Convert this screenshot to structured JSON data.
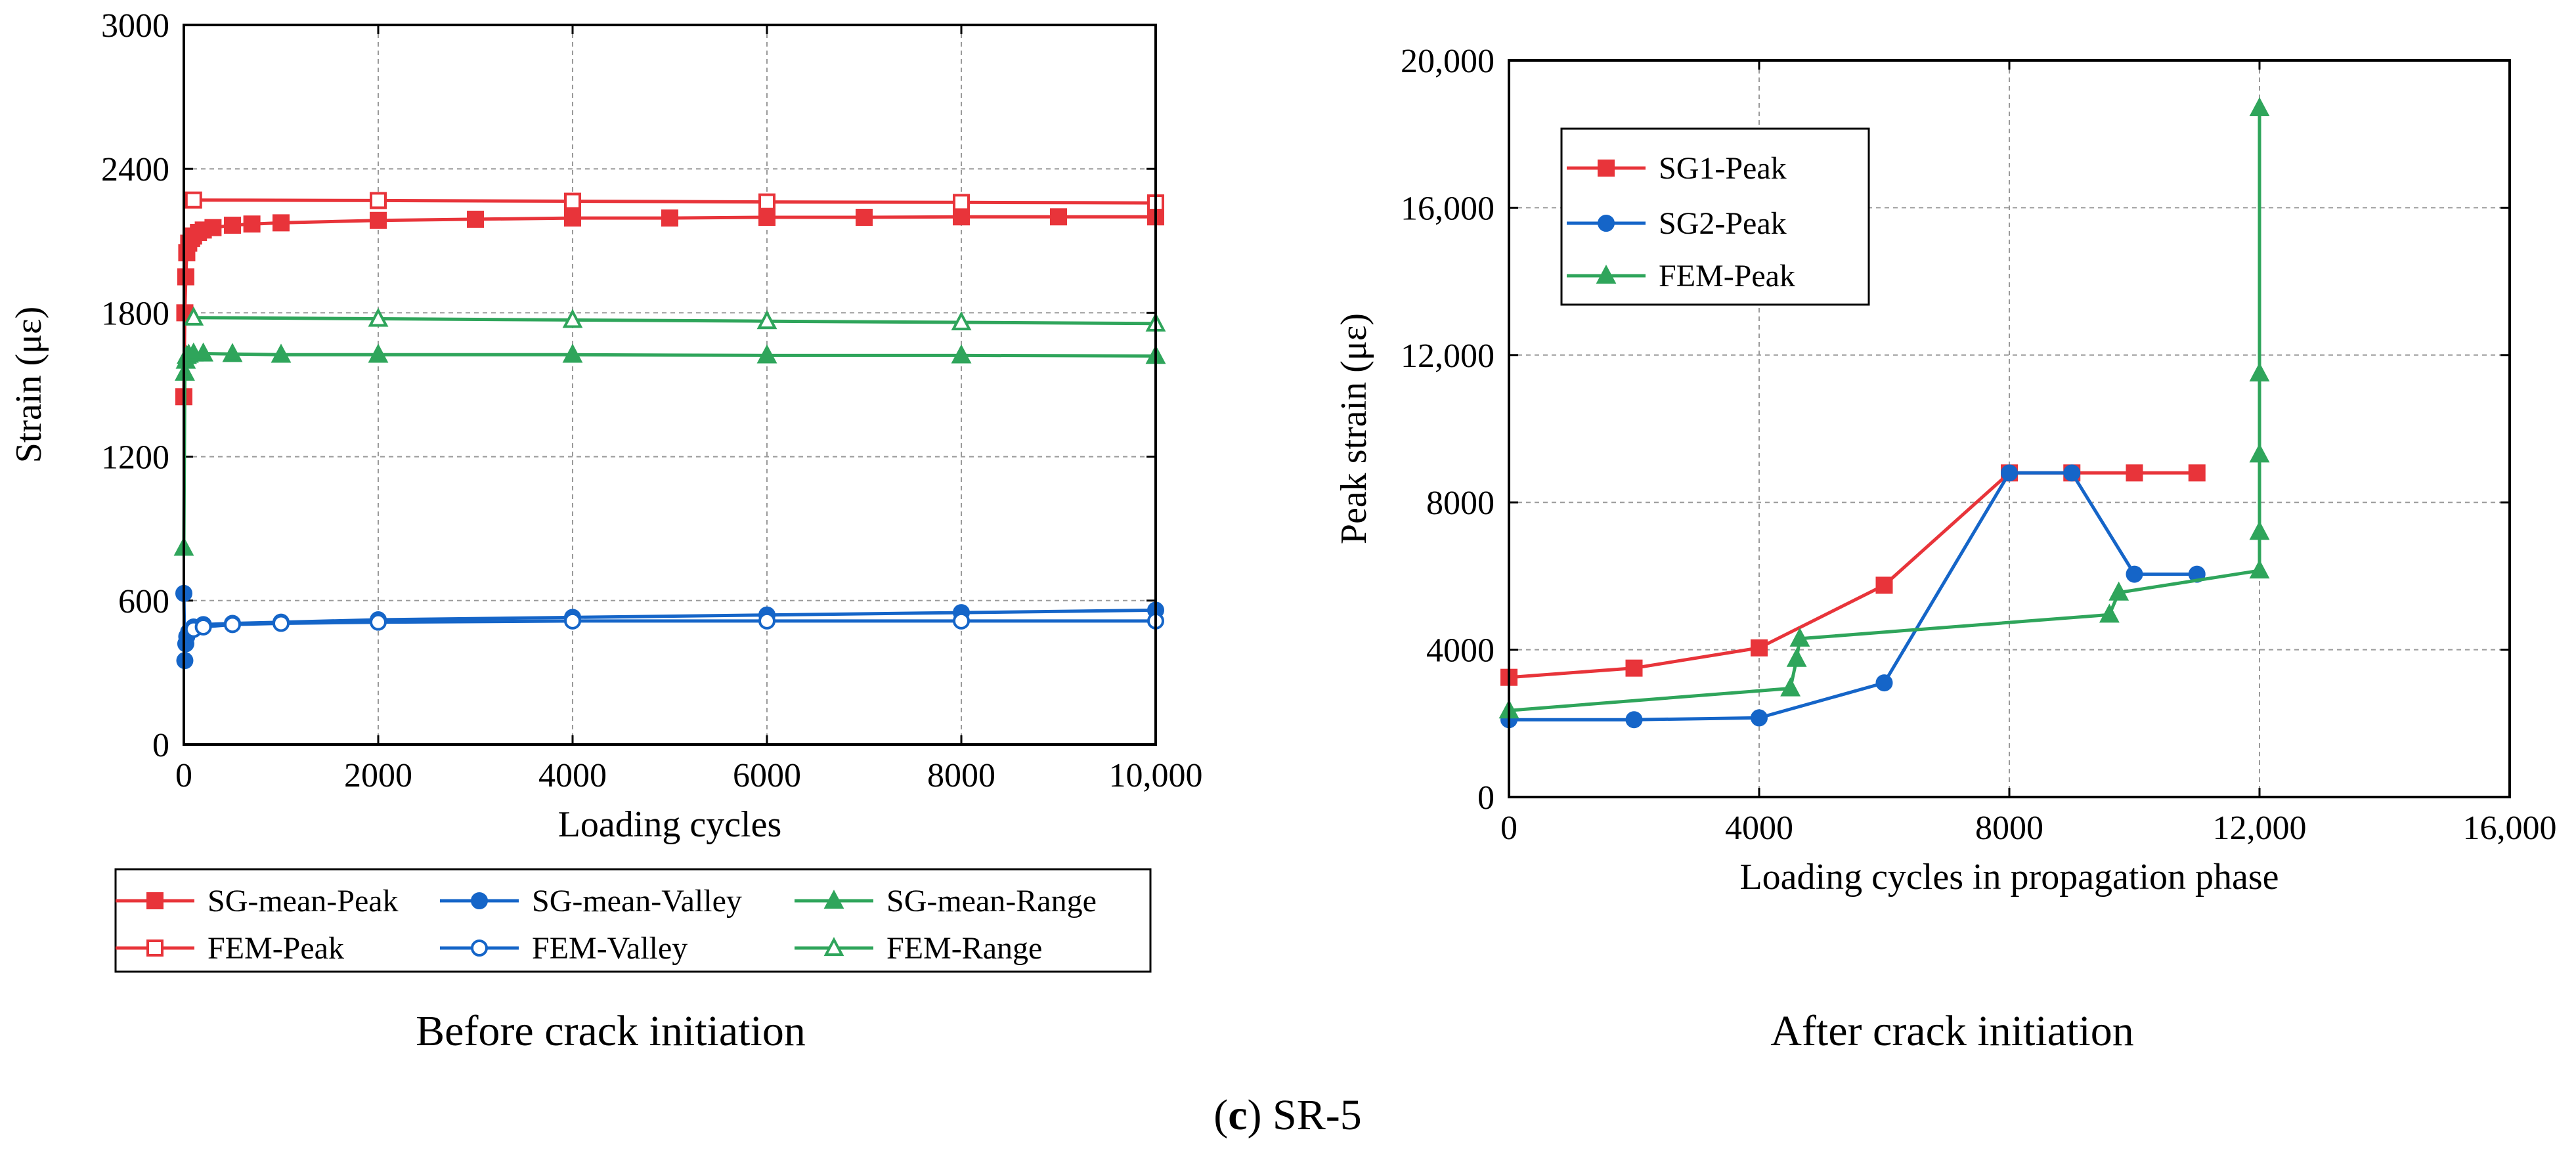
{
  "figure_caption": {
    "letter": "c",
    "rest": " SR-5"
  },
  "colors": {
    "red": "#e8343a",
    "blue": "#1565c8",
    "green": "#2fa55b",
    "grid": "#9a9a9a"
  },
  "chart_data": [
    {
      "id": "left",
      "type": "line",
      "caption": "Before crack initiation",
      "xlabel": "Loading cycles",
      "ylabel": "Strain (με)",
      "xlim": [
        0,
        10000
      ],
      "ylim": [
        0,
        3000
      ],
      "xticks": [
        0,
        2000,
        4000,
        6000,
        8000,
        10000
      ],
      "xtick_labels": [
        "0",
        "2000",
        "4000",
        "6000",
        "8000",
        "10,000"
      ],
      "yticks": [
        0,
        600,
        1200,
        1800,
        2400,
        3000
      ],
      "ytick_labels": [
        "0",
        "600",
        "1200",
        "1800",
        "2400",
        "3000"
      ],
      "grid": true,
      "legend_position": "below",
      "series": [
        {
          "name": "SG-mean-Peak",
          "color": "#e8343a",
          "marker": "square",
          "filled": true,
          "x": [
            0,
            10,
            20,
            30,
            50,
            80,
            100,
            150,
            200,
            300,
            500,
            700,
            1000,
            2000,
            3000,
            4000,
            5000,
            6000,
            7000,
            8000,
            9000,
            10000
          ],
          "y": [
            1450,
            1800,
            1950,
            2050,
            2090,
            2110,
            2120,
            2135,
            2145,
            2155,
            2165,
            2170,
            2175,
            2185,
            2190,
            2195,
            2195,
            2198,
            2198,
            2200,
            2200,
            2200
          ]
        },
        {
          "name": "SG-mean-Valley",
          "color": "#1565c8",
          "marker": "circle",
          "filled": true,
          "x": [
            0,
            10,
            20,
            30,
            50,
            100,
            200,
            500,
            1000,
            2000,
            4000,
            6000,
            8000,
            10000
          ],
          "y": [
            630,
            350,
            420,
            450,
            470,
            490,
            500,
            505,
            510,
            520,
            530,
            540,
            550,
            560
          ]
        },
        {
          "name": "SG-mean-Range",
          "color": "#2fa55b",
          "marker": "triangle",
          "filled": true,
          "x": [
            0,
            10,
            20,
            30,
            50,
            100,
            200,
            500,
            1000,
            2000,
            4000,
            6000,
            8000,
            10000
          ],
          "y": [
            820,
            1550,
            1600,
            1620,
            1625,
            1630,
            1630,
            1628,
            1625,
            1625,
            1625,
            1622,
            1622,
            1620
          ]
        },
        {
          "name": "FEM-Peak",
          "color": "#e8343a",
          "marker": "square",
          "filled": false,
          "x": [
            100,
            2000,
            4000,
            6000,
            8000,
            10000
          ],
          "y": [
            2270,
            2268,
            2265,
            2262,
            2260,
            2258
          ]
        },
        {
          "name": "FEM-Valley",
          "color": "#1565c8",
          "marker": "circle",
          "filled": false,
          "x": [
            100,
            200,
            500,
            1000,
            2000,
            4000,
            6000,
            8000,
            10000
          ],
          "y": [
            480,
            490,
            500,
            505,
            510,
            515,
            515,
            515,
            515
          ]
        },
        {
          "name": "FEM-Range",
          "color": "#2fa55b",
          "marker": "triangle",
          "filled": false,
          "x": [
            100,
            2000,
            4000,
            6000,
            8000,
            10000
          ],
          "y": [
            1780,
            1775,
            1770,
            1765,
            1760,
            1755
          ]
        }
      ]
    },
    {
      "id": "right",
      "type": "line",
      "caption": "After crack initiation",
      "xlabel": "Loading cycles in propagation phase",
      "ylabel": "Peak strain (με)",
      "xlim": [
        0,
        16000
      ],
      "ylim": [
        0,
        20000
      ],
      "xticks": [
        0,
        4000,
        8000,
        12000,
        16000
      ],
      "xtick_labels": [
        "0",
        "4000",
        "8000",
        "12,000",
        "16,000"
      ],
      "yticks": [
        0,
        4000,
        8000,
        12000,
        16000,
        20000
      ],
      "ytick_labels": [
        "0",
        "4000",
        "8000",
        "12,000",
        "16,000",
        "20,000"
      ],
      "grid": true,
      "legend_position": "top-left",
      "series": [
        {
          "name": "SG1-Peak",
          "color": "#e8343a",
          "marker": "square",
          "filled": true,
          "x": [
            0,
            2000,
            4000,
            6000,
            8000,
            9000,
            10000,
            11000
          ],
          "y": [
            3250,
            3500,
            4050,
            5750,
            8800,
            8800,
            8800,
            8800
          ]
        },
        {
          "name": "SG2-Peak",
          "color": "#1565c8",
          "marker": "circle",
          "filled": true,
          "x": [
            0,
            2000,
            4000,
            6000,
            8000,
            9000,
            10000,
            11000
          ],
          "y": [
            2100,
            2100,
            2150,
            3100,
            8800,
            8800,
            6050,
            6050
          ]
        },
        {
          "name": "FEM-Peak",
          "color": "#2fa55b",
          "marker": "triangle",
          "filled": true,
          "x": [
            0,
            4500,
            4600,
            4650,
            9600,
            9750,
            12000,
            12000,
            12000,
            12000,
            12000
          ],
          "y": [
            2350,
            2950,
            3750,
            4300,
            4950,
            5550,
            6150,
            7200,
            9300,
            11500,
            18700
          ]
        }
      ]
    }
  ]
}
